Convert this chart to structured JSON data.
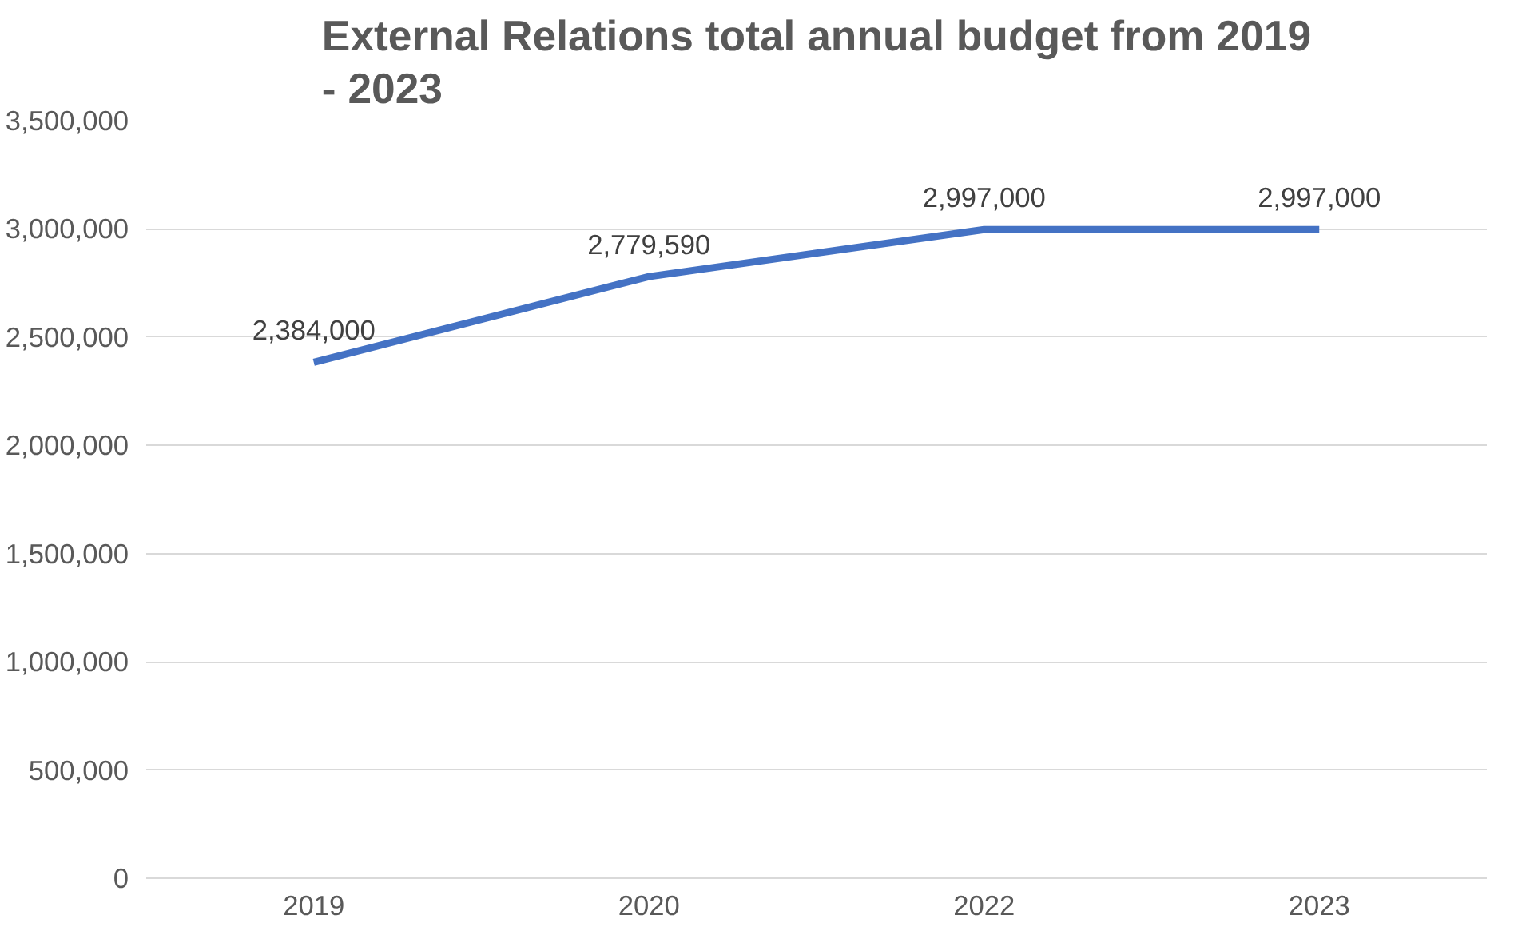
{
  "chart_data": {
    "type": "line",
    "title": "External Relations total annual budget from 2019 - 2023",
    "categories": [
      "2019",
      "2020",
      "2022",
      "2023"
    ],
    "series": [
      {
        "color": "#4472c4",
        "values": [
          2384000,
          2779590,
          2997000,
          2997000
        ],
        "value_labels": [
          "2,384,000",
          "2,779,590",
          "2,997,000",
          "2,997,000"
        ]
      }
    ],
    "ylim": [
      0,
      3500000
    ],
    "yticks": [
      {
        "value": 0,
        "label": "0"
      },
      {
        "value": 500000,
        "label": "500,000"
      },
      {
        "value": 1000000,
        "label": "1,000,000"
      },
      {
        "value": 1500000,
        "label": "1,500,000"
      },
      {
        "value": 2000000,
        "label": "2,000,000"
      },
      {
        "value": 2500000,
        "label": "2,500,000"
      },
      {
        "value": 3000000,
        "label": "3,000,000"
      },
      {
        "value": 3500000,
        "label": "3,500,000"
      }
    ],
    "grid": "y",
    "marker": "none",
    "line_style": "solid"
  }
}
